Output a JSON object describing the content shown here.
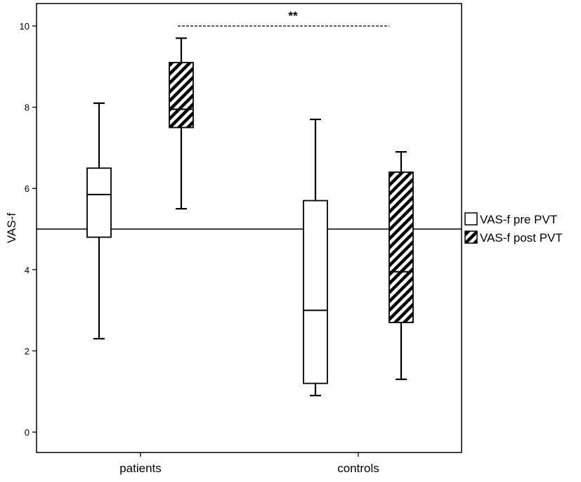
{
  "chart_data": {
    "type": "box",
    "ylabel": "VAS-f",
    "ylim": [
      -0.5,
      10.5
    ],
    "yticks": [
      0,
      2,
      4,
      6,
      8,
      10
    ],
    "categories": [
      "patients",
      "controls"
    ],
    "series": [
      {
        "name": "VAS-f pre PVT",
        "fill": "none",
        "boxes": [
          {
            "category": "patients",
            "min": 2.3,
            "q1": 4.8,
            "median": 5.85,
            "q3": 6.5,
            "max": 8.1
          },
          {
            "category": "controls",
            "min": 0.9,
            "q1": 1.2,
            "median": 3.0,
            "q3": 5.7,
            "max": 7.7
          }
        ]
      },
      {
        "name": "VAS-f post PVT",
        "fill": "hatched",
        "boxes": [
          {
            "category": "patients",
            "min": 5.5,
            "q1": 7.5,
            "median": 7.95,
            "q3": 9.1,
            "max": 9.7
          },
          {
            "category": "controls",
            "min": 1.3,
            "q1": 2.7,
            "median": 3.95,
            "q3": 6.4,
            "max": 6.9
          }
        ]
      }
    ],
    "reference_line": {
      "y": 5.0
    },
    "annotations": [
      {
        "text": "**",
        "from": {
          "category": "patients",
          "series": "VAS-f post PVT"
        },
        "to": {
          "category": "controls",
          "series": "VAS-f pre PVT"
        },
        "y": 10.0,
        "style": "dashed"
      }
    ],
    "legend_position": "right",
    "grid": false
  },
  "colors": {
    "line": "#000000",
    "background": "#ffffff",
    "hatch": "#000000"
  }
}
